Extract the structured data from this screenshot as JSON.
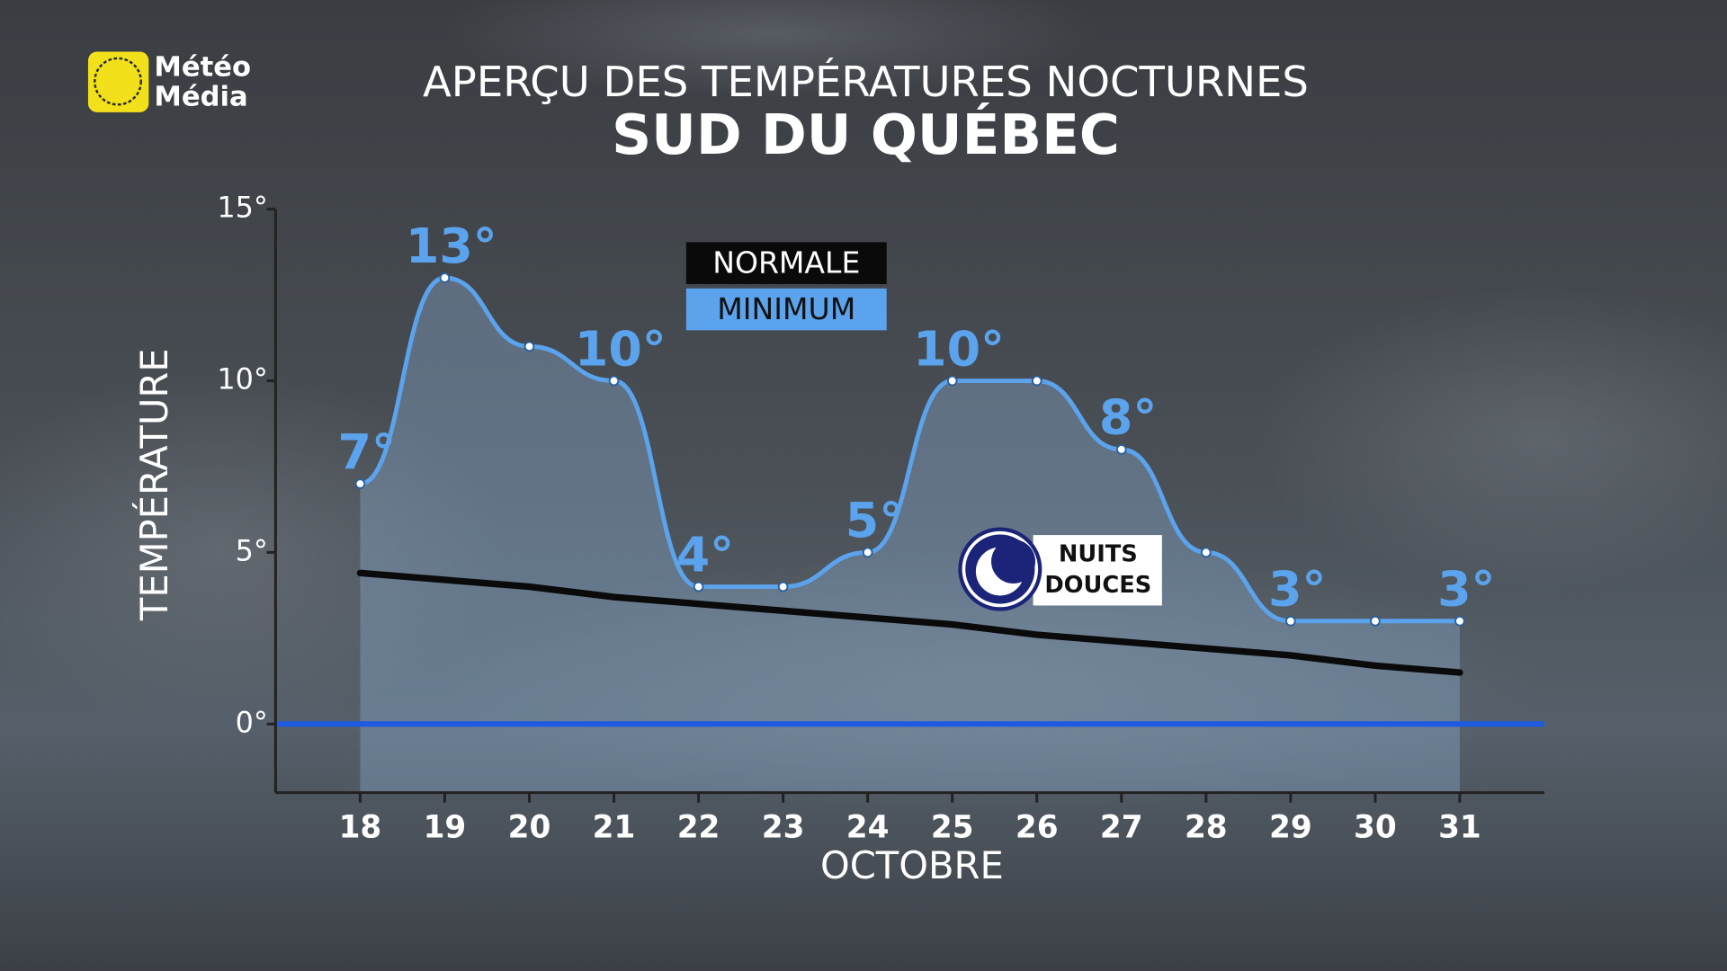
{
  "logo": [
    "Météo",
    "Média"
  ],
  "chart_data": {
    "type": "line",
    "title": "APERÇU DES TEMPÉRATURES NOCTURNES",
    "subtitle": "SUD DU QUÉBEC",
    "x_label": "OCTOBRE",
    "y_label": "TEMPÉRATURE",
    "categories": [
      "18",
      "19",
      "20",
      "21",
      "22",
      "23",
      "24",
      "25",
      "26",
      "27",
      "28",
      "29",
      "30",
      "31"
    ],
    "series": [
      {
        "name": "NORMALE",
        "color": "#0a0a0a",
        "values": [
          4.4,
          4.2,
          4.0,
          3.7,
          3.5,
          3.3,
          3.1,
          2.9,
          2.6,
          2.4,
          2.2,
          2.0,
          1.7,
          1.5
        ]
      },
      {
        "name": "MINIMUM",
        "color": "#5ba3ec",
        "values": [
          7,
          13,
          11,
          10,
          4,
          4,
          5,
          10,
          10,
          8,
          5,
          3,
          3,
          3
        ],
        "value_labels": [
          "7°",
          "13°",
          null,
          "10°",
          "4°",
          null,
          "5°",
          "10°",
          null,
          "8°",
          null,
          "3°",
          null,
          "3°"
        ]
      }
    ],
    "ylim": [
      -2,
      15
    ],
    "yticks": [
      {
        "value": 0,
        "label": "0°"
      },
      {
        "value": 5,
        "label": "5°"
      },
      {
        "value": 10,
        "label": "10°"
      },
      {
        "value": 15,
        "label": "15°"
      }
    ],
    "zero_line_color": "#1f5be0",
    "area_color": "#8fb4dc",
    "legend": "top-center",
    "annotation": [
      "NUITS",
      "DOUCES"
    ]
  }
}
